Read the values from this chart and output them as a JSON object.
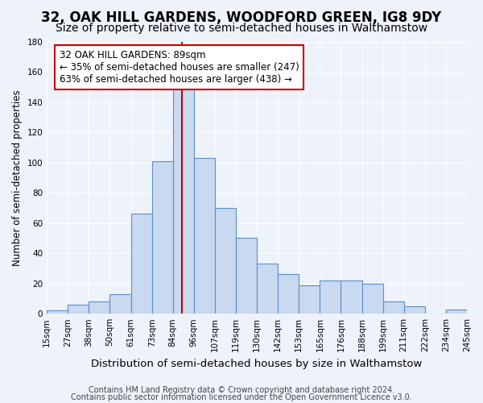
{
  "title": "32, OAK HILL GARDENS, WOODFORD GREEN, IG8 9DY",
  "subtitle": "Size of property relative to semi-detached houses in Walthamstow",
  "xlabel": "Distribution of semi-detached houses by size in Walthamstow",
  "ylabel": "Number of semi-detached properties",
  "bin_labels": [
    "15sqm",
    "27sqm",
    "38sqm",
    "50sqm",
    "61sqm",
    "73sqm",
    "84sqm",
    "96sqm",
    "107sqm",
    "119sqm",
    "130sqm",
    "142sqm",
    "153sqm",
    "165sqm",
    "176sqm",
    "188sqm",
    "199sqm",
    "211sqm",
    "222sqm",
    "234sqm",
    "245sqm"
  ],
  "bar_heights": [
    2,
    6,
    8,
    13,
    66,
    101,
    151,
    103,
    70,
    50,
    33,
    26,
    19,
    22,
    22,
    20,
    8,
    5,
    0,
    3
  ],
  "bar_color": "#c9d9f0",
  "bar_edge_color": "#5b8fc9",
  "vline_color": "#cc0000",
  "annotation_title": "32 OAK HILL GARDENS: 89sqm",
  "annotation_line2": "← 35% of semi-detached houses are smaller (247)",
  "annotation_line3": "63% of semi-detached houses are larger (438) →",
  "annotation_box_color": "#ffffff",
  "annotation_box_edge": "#cc0000",
  "ylim": [
    0,
    180
  ],
  "yticks": [
    0,
    20,
    40,
    60,
    80,
    100,
    120,
    140,
    160,
    180
  ],
  "footer1": "Contains HM Land Registry data © Crown copyright and database right 2024.",
  "footer2": "Contains public sector information licensed under the Open Government Licence v3.0.",
  "bg_color": "#eef2fb",
  "plot_bg_color": "#eef2fb",
  "grid_color": "#ffffff",
  "title_fontsize": 12,
  "subtitle_fontsize": 10,
  "xlabel_fontsize": 9.5,
  "ylabel_fontsize": 8.5,
  "tick_fontsize": 7.5,
  "annotation_fontsize": 8.5,
  "footer_fontsize": 7
}
